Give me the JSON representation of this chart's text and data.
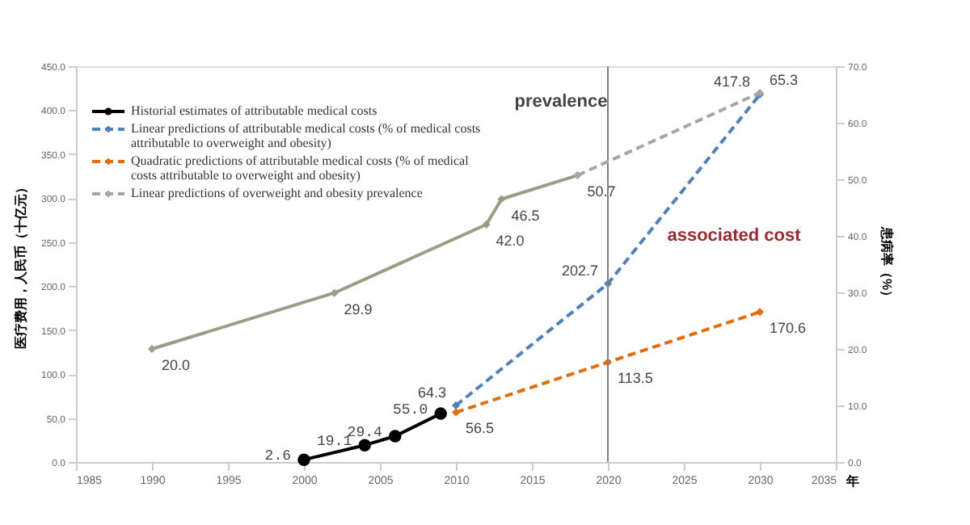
{
  "chart_data": {
    "type": "line",
    "xlabel": "年",
    "ylabel": "医疗费用，人民币（十亿元）",
    "y2label": "患病率（%）",
    "xlim": [
      1985,
      2035
    ],
    "xticks": [
      1985,
      1990,
      1995,
      2000,
      2005,
      2010,
      2015,
      2020,
      2025,
      2030,
      2035
    ],
    "ylim": [
      0,
      450
    ],
    "yticks": [
      {
        "value": 0,
        "label": "0.0"
      },
      {
        "value": 50,
        "label": "50.0"
      },
      {
        "value": 100,
        "label": "100.0"
      },
      {
        "value": 150,
        "label": "150.0"
      },
      {
        "value": 200,
        "label": "200.0"
      },
      {
        "value": 250,
        "label": "250.0"
      },
      {
        "value": 300,
        "label": "300.0"
      },
      {
        "value": 350,
        "label": "350.0"
      },
      {
        "value": 400,
        "label": "400.0"
      },
      {
        "value": 450,
        "label": "450.0"
      }
    ],
    "y2lim": [
      0,
      70
    ],
    "y2ticks": [
      {
        "value": 0,
        "label": "0.0"
      },
      {
        "value": 10,
        "label": "10.0"
      },
      {
        "value": 20,
        "label": "20.0"
      },
      {
        "value": 30,
        "label": "30.0"
      },
      {
        "value": 40,
        "label": "40.0"
      },
      {
        "value": 50,
        "label": "50.0"
      },
      {
        "value": 60,
        "label": "60.0"
      },
      {
        "value": 70,
        "label": "70.0"
      }
    ],
    "grid": false,
    "legend": "top left",
    "series": [
      {
        "name": "Historial estimates of attributable medical costs",
        "color": "#000000",
        "x": [
          2000,
          2004,
          2006,
          2009
        ],
        "values": [
          2.6,
          19.1,
          29.4,
          55.0
        ],
        "value_labels": [
          "2.6",
          "19.1",
          "29.4",
          "55.0"
        ],
        "marker": "circle",
        "line_style": "solid"
      },
      {
        "name": "Linear predictions of attributable medical costs (% of medical costs attributable to overweight and obesity)",
        "color": "#4f81bd",
        "x": [
          2010,
          2020,
          2030
        ],
        "values": [
          64.3,
          202.7,
          417.8
        ],
        "value_labels": [
          "64.3",
          "202.7",
          "417.8"
        ],
        "marker": "diamond",
        "line_style": "dashed"
      },
      {
        "name": "Quadratic predictions of attributable medical costs (% of medical costs attributable to overweight and obesity)",
        "color": "#e46c0a",
        "x": [
          2010,
          2020,
          2030
        ],
        "values": [
          56.5,
          113.5,
          170.6
        ],
        "value_labels": [
          "56.5",
          "113.5",
          "170.6"
        ],
        "marker": "diamond",
        "line_style": "dashed"
      },
      {
        "color": "#9c9c84",
        "axis": "y2",
        "x": [
          1990,
          2002,
          2012,
          2013,
          2018
        ],
        "values": [
          20.0,
          29.9,
          42.0,
          46.5,
          50.7
        ],
        "value_labels": [
          "20.0",
          "29.9",
          "42.0",
          "46.5",
          "50.7"
        ],
        "marker": "diamond",
        "line_style": "solid"
      },
      {
        "name": "Linear predictions of overweight and obesity prevalence",
        "color": "#a6a6a6",
        "axis": "y2",
        "x": [
          2018,
          2030
        ],
        "values": [
          50.7,
          65.3
        ],
        "value_labels": [
          null,
          "65.3"
        ],
        "marker": "diamond",
        "line_style": "dashed"
      }
    ],
    "ref_lines": [
      {
        "axis": "x",
        "value": 2020,
        "color": "#808080"
      }
    ],
    "annotations": [
      "prevalence",
      "associated cost"
    ]
  }
}
